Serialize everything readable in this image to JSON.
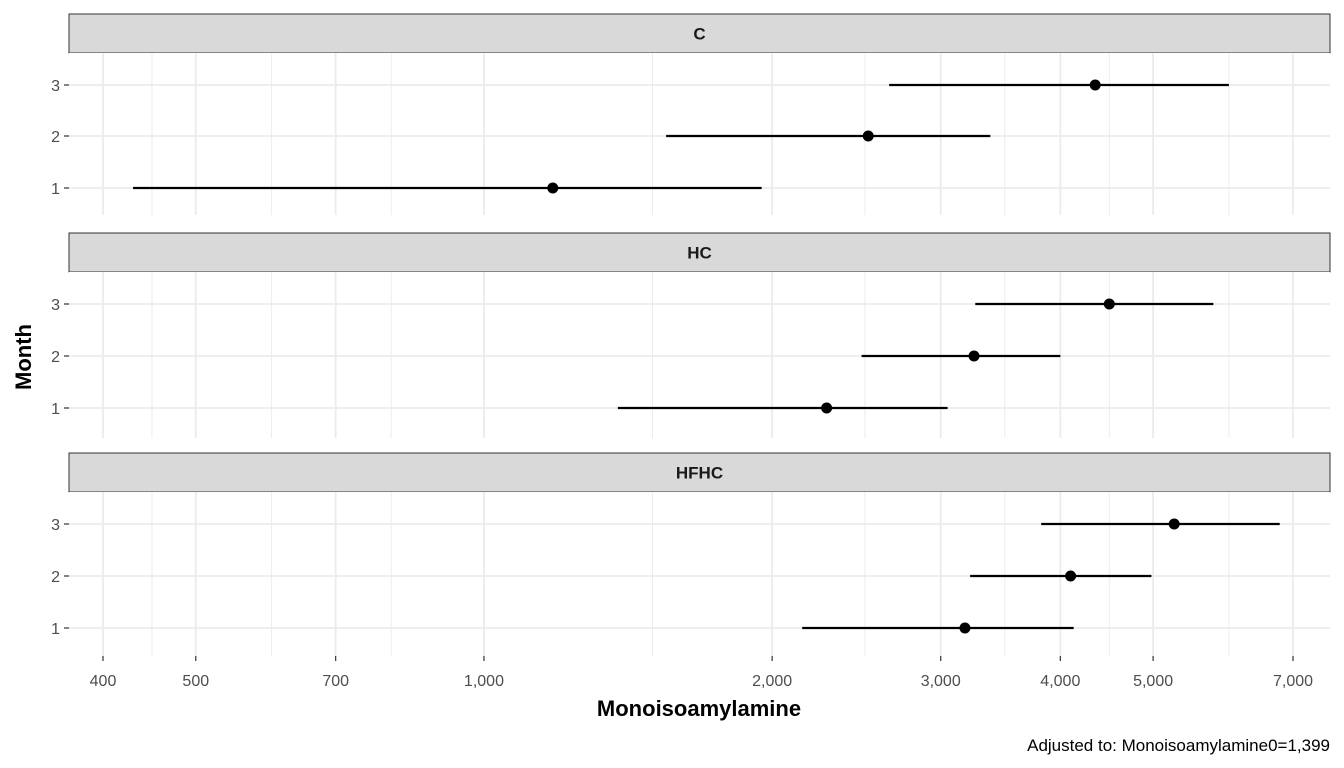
{
  "chart_data": {
    "type": "scatter",
    "subtype": "point-range (faceted)",
    "xlabel": "Monoisoamylamine",
    "ylabel": "Month",
    "caption": "Adjusted to: Monoisoamylamine0=1,399",
    "x_scale": "log",
    "xlim": [
      380,
      7500
    ],
    "x_ticks": [
      400,
      500,
      700,
      1000,
      2000,
      3000,
      4000,
      5000,
      7000
    ],
    "x_tick_labels": [
      "400",
      "500",
      "700",
      "1,000",
      "2,000",
      "3,000",
      "4,000",
      "5,000",
      "7,000"
    ],
    "y_categories": [
      "1",
      "2",
      "3"
    ],
    "grid": true,
    "facets": [
      {
        "label": "C",
        "points": [
          {
            "month": "1",
            "estimate": 1180,
            "lower": 430,
            "upper": 1950
          },
          {
            "month": "2",
            "estimate": 2520,
            "lower": 1550,
            "upper": 3380
          },
          {
            "month": "3",
            "estimate": 4350,
            "lower": 2650,
            "upper": 6000
          }
        ]
      },
      {
        "label": "HC",
        "points": [
          {
            "month": "1",
            "estimate": 2280,
            "lower": 1380,
            "upper": 3050
          },
          {
            "month": "2",
            "estimate": 3250,
            "lower": 2480,
            "upper": 4000
          },
          {
            "month": "3",
            "estimate": 4500,
            "lower": 3260,
            "upper": 5780
          }
        ]
      },
      {
        "label": "HFHC",
        "points": [
          {
            "month": "1",
            "estimate": 3180,
            "lower": 2150,
            "upper": 4130
          },
          {
            "month": "2",
            "estimate": 4100,
            "lower": 3220,
            "upper": 4980
          },
          {
            "month": "3",
            "estimate": 5260,
            "lower": 3820,
            "upper": 6780
          }
        ]
      }
    ]
  }
}
